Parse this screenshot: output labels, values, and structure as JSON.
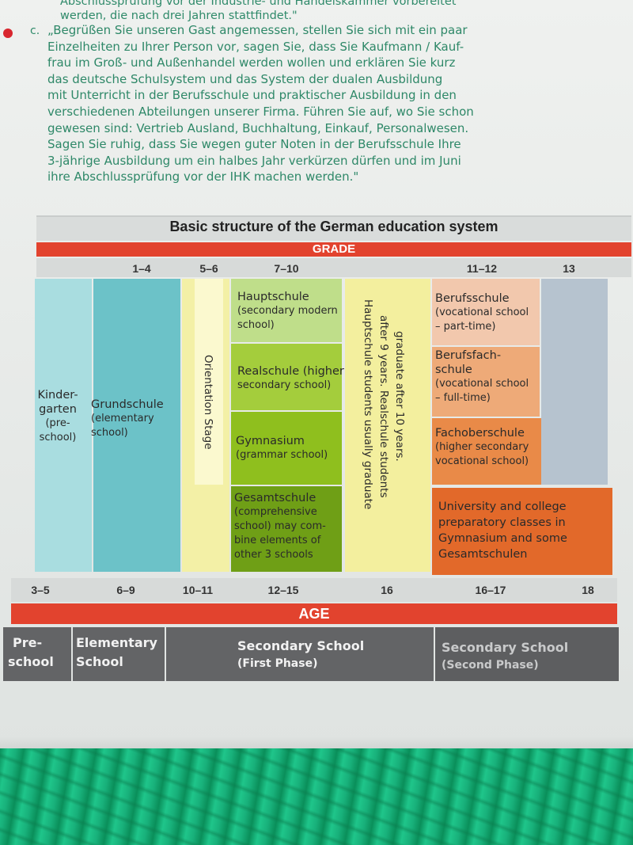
{
  "intro": {
    "line1": "Abschlussprüfung vor der Industrie- und Handelskammer vorbereitet",
    "line2": "werden, die nach drei Jahren stattfindet.\""
  },
  "item_c": {
    "label": "c.",
    "lines": [
      "„Begrüßen Sie unseren Gast angemessen, stellen Sie sich mit ein paar",
      "Einzelheiten zu Ihrer Person vor, sagen Sie, dass Sie Kaufmann / Kauf-",
      "frau im Groß- und Außenhandel werden wollen und erklären Sie kurz",
      "das deutsche Schulsystem und das System der dualen Ausbildung",
      "mit Unterricht in der Berufsschule und praktischer Ausbildung in den",
      "verschiedenen Abteilungen unserer Firma. Führen Sie auf, wo Sie schon",
      "gewesen sind: Vertrieb Ausland, Buchhaltung, Einkauf, Personalwesen.",
      "Sagen Sie ruhig, dass Sie wegen guter Noten in der Berufsschule Ihre",
      "3-jährige Ausbildung um ein halbes Jahr verkürzen dürfen und im Juni",
      "ihre Abschlussprüfung vor der IHK machen werden.\""
    ]
  },
  "diagram": {
    "title": "Basic structure of the German education system",
    "grade_header": "GRADE",
    "age_header": "AGE",
    "grades": [
      "1–4",
      "5–6",
      "7–10",
      "11–12",
      "13"
    ],
    "ages": [
      "3–5",
      "6–9",
      "10–11",
      "12–15",
      "16",
      "16–17",
      "18"
    ],
    "kindergarten": [
      "Kinder-",
      "garten",
      "(pre-",
      "school)"
    ],
    "grundschule": [
      "Grundschule",
      "(elementary",
      "school)"
    ],
    "orientation": "Orientation Stage",
    "hauptschule": [
      "Hauptschule",
      "(secondary modern",
      "school)"
    ],
    "realschule": [
      "Realschule (higher",
      "secondary school)"
    ],
    "gymnasium": [
      "Gymnasium",
      "(grammar school)"
    ],
    "gesamtschule": [
      "Gesamtschule",
      "(comprehensive",
      "school) may com-",
      "bine elements of",
      "other 3 schools"
    ],
    "graduation_note": [
      "Hauptschule students usually graduate",
      "after 9 years. Realschule students",
      "graduate after 10 years."
    ],
    "berufsschule": [
      "Berufsschule",
      "(vocational school",
      "– part-time)"
    ],
    "berufsfachschule": [
      "Berufsfach-",
      "schule",
      "(vocational school",
      "– full-time)"
    ],
    "fachoberschule": [
      "Fachoberschule",
      "(higher secondary",
      "vocational school)"
    ],
    "university_prep": [
      "University and college",
      "preparatory classes in",
      "Gymnasium and some",
      "Gesamtschulen"
    ],
    "phases": {
      "preschool": [
        "Pre-",
        "school"
      ],
      "elementary": [
        "Elementary",
        "School"
      ],
      "secondary_first": [
        "Secondary School",
        "(First Phase)"
      ],
      "secondary_second": [
        "Secondary School",
        "(Second Phase)"
      ]
    }
  },
  "colors": {
    "red_band": "#e2432e",
    "kindergarten": "#a9dde0",
    "grundschule": "#6cc2c8",
    "orientation": "#f3f0a6",
    "hauptschule": "#bfde8a",
    "realschule": "#a4cd3c",
    "gymnasium": "#8fbf1e",
    "gesamtschule": "#6f9f16",
    "note_column": "#f3ef9e",
    "berufsschule": "#f2c8ad",
    "berufsfachschule": "#eeaa78",
    "fachoberschule": "#e98a48",
    "university_prep": "#e2692a",
    "grade13": "#b6c3cf",
    "phase_bar": "#636466"
  }
}
